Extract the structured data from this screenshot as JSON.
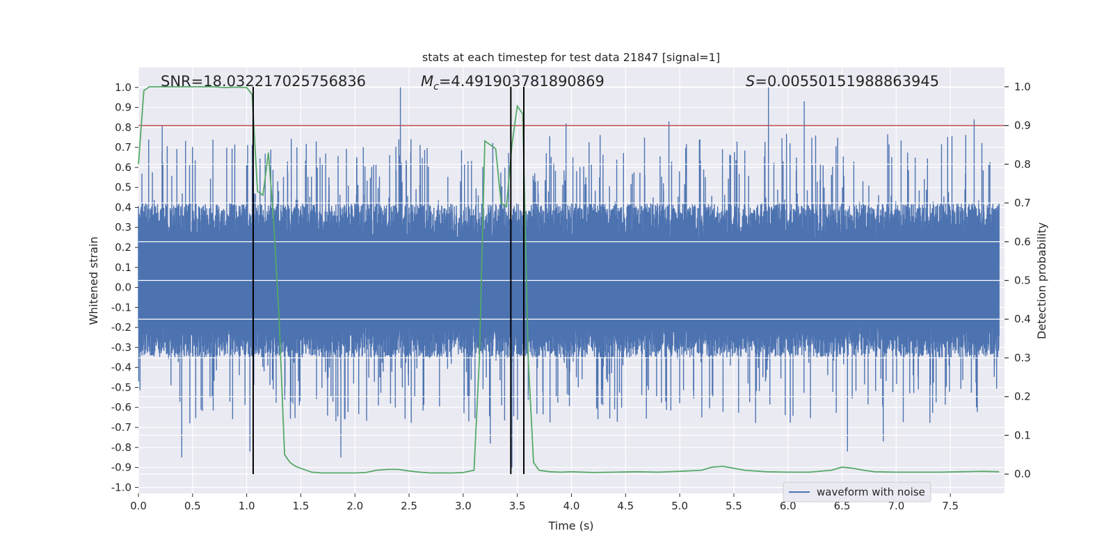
{
  "chart_data": {
    "type": "line",
    "title": "stats at each timestep for test data 21847 [signal=1]",
    "xlabel": "Time (s)",
    "ylabel": "Whitened strain",
    "ylabel_right": "Detection probability",
    "xlim": [
      0.0,
      8.0
    ],
    "ylim": [
      -1.03,
      1.1
    ],
    "ylim_right": [
      -0.05,
      1.05
    ],
    "x_ticks": [
      "0.0",
      "0.5",
      "1.0",
      "1.5",
      "2.0",
      "2.5",
      "3.0",
      "3.5",
      "4.0",
      "4.5",
      "5.0",
      "5.5",
      "6.0",
      "6.5",
      "7.0",
      "7.5"
    ],
    "y_ticks": [
      "1.0",
      "0.9",
      "0.8",
      "0.7",
      "0.6",
      "0.5",
      "0.4",
      "0.3",
      "0.2",
      "0.1",
      "0.0",
      "-0.1",
      "-0.2",
      "-0.3",
      "-0.4",
      "-0.5",
      "-0.6",
      "-0.7",
      "-0.8",
      "-0.9",
      "-1.0"
    ],
    "y_ticks_right": [
      "1.0",
      "0.9",
      "0.8",
      "0.7",
      "0.6",
      "0.5",
      "0.4",
      "0.3",
      "0.2",
      "0.1",
      "0.0"
    ],
    "grid": true,
    "legend_position": "lower-right",
    "annotations": {
      "snr": "SNR=18.032217025756836",
      "mc_symbol": "M",
      "mc_sub": "c",
      "mc_value": "=4.491903781890869",
      "s_symbol": "S",
      "s_value": "=0.00550151988863945"
    },
    "threshold_right": 0.9,
    "vertical_lines_x": [
      1.06,
      3.44,
      3.56
    ],
    "series": [
      {
        "name": "waveform with noise",
        "color": "#4c72b0",
        "axis": "left",
        "note_values": "dense noise band roughly between -0.35 and 0.42 with frequent spikes",
        "envelope": {
          "core_low": -0.35,
          "core_high": 0.42,
          "max_spike": 1.0,
          "min_spike": -0.9
        },
        "notable_spikes_x": [
          0.22,
          0.4,
          1.0,
          1.03,
          1.87,
          2.42,
          3.25,
          3.45,
          3.95,
          4.9,
          5.82,
          6.15,
          6.55,
          6.88,
          7.72
        ],
        "notable_spikes_y": [
          0.81,
          -0.85,
          0.61,
          -0.82,
          -0.85,
          1.0,
          -0.78,
          -0.9,
          0.82,
          0.83,
          1.0,
          0.93,
          -0.82,
          -0.77,
          0.84
        ]
      },
      {
        "name": "",
        "color": "#55a868",
        "axis": "right",
        "x": [
          0.0,
          0.05,
          0.1,
          0.2,
          0.3,
          0.4,
          0.5,
          0.6,
          0.7,
          0.8,
          0.9,
          1.0,
          1.05,
          1.1,
          1.15,
          1.2,
          1.25,
          1.3,
          1.35,
          1.4,
          1.45,
          1.5,
          1.6,
          1.7,
          1.8,
          1.9,
          2.0,
          2.1,
          2.2,
          2.3,
          2.4,
          2.5,
          2.6,
          2.7,
          2.8,
          2.9,
          3.0,
          3.1,
          3.15,
          3.2,
          3.25,
          3.3,
          3.35,
          3.4,
          3.45,
          3.5,
          3.55,
          3.6,
          3.65,
          3.7,
          3.75,
          3.8,
          3.9,
          4.0,
          4.2,
          4.4,
          4.6,
          4.8,
          5.0,
          5.2,
          5.3,
          5.4,
          5.5,
          5.6,
          5.8,
          6.0,
          6.2,
          6.4,
          6.5,
          6.6,
          6.7,
          6.8,
          7.0,
          7.2,
          7.4,
          7.6,
          7.8,
          7.95
        ],
        "y": [
          0.8,
          0.99,
          1.0,
          1.0,
          1.0,
          1.0,
          1.0,
          1.0,
          1.0,
          0.998,
          0.999,
          0.998,
          0.98,
          0.73,
          0.72,
          0.83,
          0.65,
          0.4,
          0.05,
          0.03,
          0.02,
          0.015,
          0.005,
          0.003,
          0.003,
          0.003,
          0.003,
          0.004,
          0.01,
          0.012,
          0.012,
          0.008,
          0.005,
          0.003,
          0.003,
          0.003,
          0.004,
          0.01,
          0.3,
          0.86,
          0.85,
          0.84,
          0.7,
          0.69,
          0.85,
          0.95,
          0.93,
          0.3,
          0.03,
          0.01,
          0.008,
          0.006,
          0.005,
          0.006,
          0.004,
          0.005,
          0.006,
          0.005,
          0.007,
          0.01,
          0.018,
          0.02,
          0.015,
          0.01,
          0.006,
          0.005,
          0.005,
          0.01,
          0.018,
          0.015,
          0.01,
          0.006,
          0.005,
          0.005,
          0.005,
          0.006,
          0.007,
          0.006
        ]
      }
    ]
  }
}
